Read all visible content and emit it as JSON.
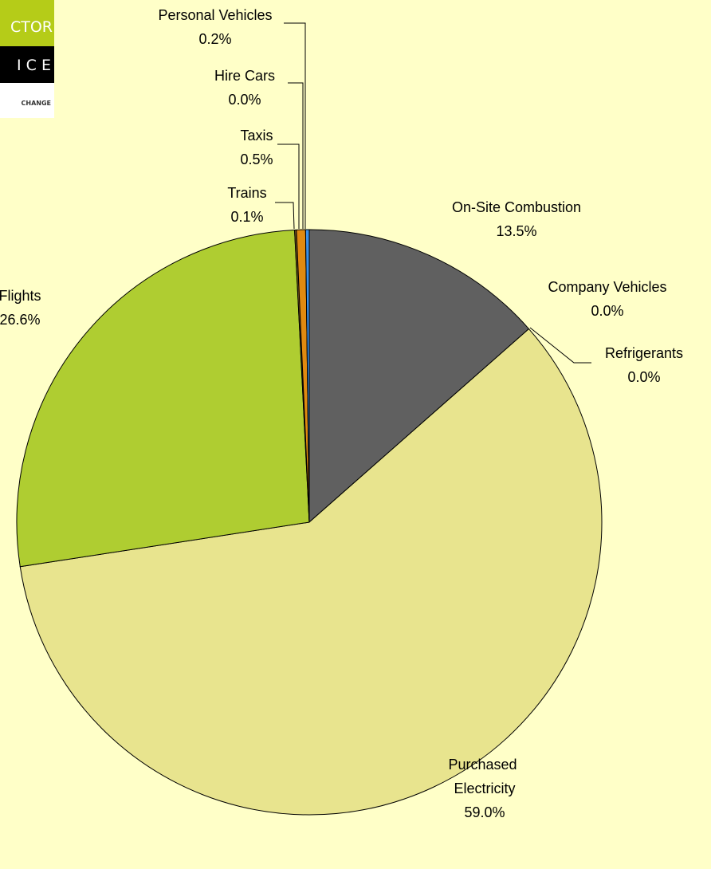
{
  "logo": {
    "lines": [
      "CTOR",
      "I C E",
      "CHANGE"
    ]
  },
  "chart_data": {
    "type": "pie",
    "categories": [
      "On-Site Combustion",
      "Company Vehicles",
      "Refrigerants",
      "Purchased Electricity",
      "Flights",
      "Trains",
      "Taxis",
      "Hire Cars",
      "Personal Vehicles"
    ],
    "values": [
      13.5,
      0.0,
      0.0,
      59.0,
      26.6,
      0.1,
      0.5,
      0.0,
      0.2
    ],
    "value_labels": [
      "13.5%",
      "0.0%",
      "0.0%",
      "59.0%",
      "26.6%",
      "0.1%",
      "0.5%",
      "0.0%",
      "0.2%"
    ],
    "colors": [
      "#606060",
      "#8a8a8a",
      "#b0b0b0",
      "#e8e48e",
      "#afcd31",
      "#7a5a20",
      "#e08a10",
      "#1060a0",
      "#3a90e8"
    ]
  }
}
